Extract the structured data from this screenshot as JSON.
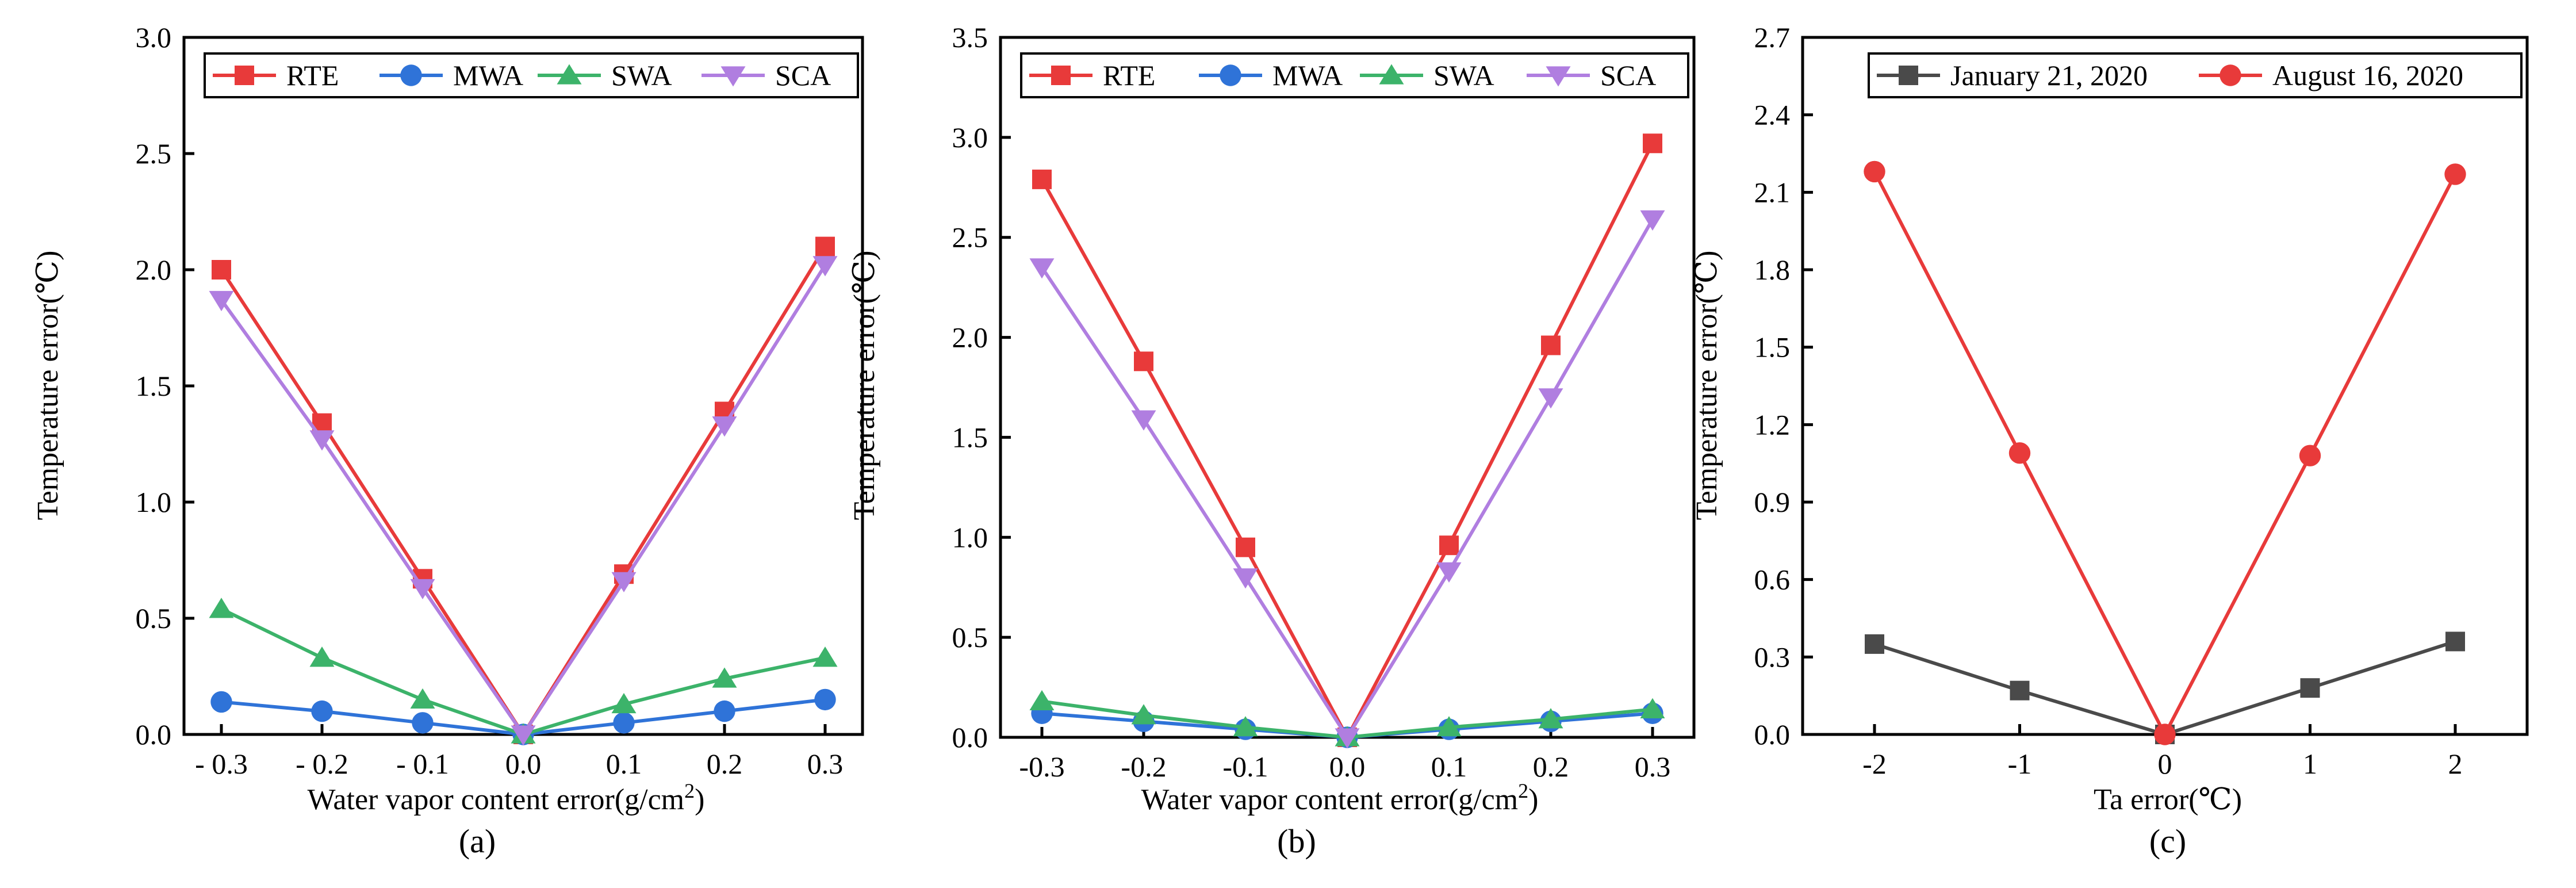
{
  "colors": {
    "RTE": "#e83a3a",
    "MWA": "#2f73d8",
    "SWA": "#3cb36a",
    "SCA": "#b07ee0",
    "jan": "#4a4a4a",
    "aug": "#e83a3a"
  },
  "chart_data": [
    {
      "type": "line",
      "panel": "(a)",
      "xlabel": "Water vapor content error(g/cm",
      "xlabel_sup": "2",
      "xlabel_end": ")",
      "ylabel": "Temperature error(℃)",
      "x": [
        -0.3,
        -0.2,
        -0.1,
        0.0,
        0.1,
        0.2,
        0.3
      ],
      "xtick_labels": [
        "- 0.3",
        "- 0.2",
        "- 0.1",
        "0.0",
        "0.1",
        "0.2",
        "0.3"
      ],
      "ylim": [
        0,
        3.0
      ],
      "yticks": [
        0,
        0.5,
        1.0,
        1.5,
        2.0,
        2.5,
        3.0
      ],
      "ytick_labels": [
        "0.0",
        "0.5",
        "1.0",
        "1.5",
        "2.0",
        "2.5",
        "3.0"
      ],
      "legend_position": "top-right",
      "series": [
        {
          "name": "RTE",
          "marker": "square",
          "values": [
            2.0,
            1.34,
            0.67,
            0.0,
            0.69,
            1.39,
            2.1
          ]
        },
        {
          "name": "MWA",
          "marker": "circle",
          "values": [
            0.14,
            0.1,
            0.05,
            0.0,
            0.05,
            0.1,
            0.15
          ]
        },
        {
          "name": "SWA",
          "marker": "triangle-up",
          "values": [
            0.54,
            0.33,
            0.15,
            0.0,
            0.13,
            0.24,
            0.33
          ]
        },
        {
          "name": "SCA",
          "marker": "triangle-down",
          "values": [
            1.87,
            1.27,
            0.63,
            0.0,
            0.66,
            1.33,
            2.02
          ]
        }
      ]
    },
    {
      "type": "line",
      "panel": "(b)",
      "xlabel": "Water vapor content error(g/cm",
      "xlabel_sup": "2",
      "xlabel_end": ")",
      "ylabel": "Temperature error(℃)",
      "x": [
        -0.3,
        -0.2,
        -0.1,
        0.0,
        0.1,
        0.2,
        0.3
      ],
      "xtick_labels": [
        "-0.3",
        "-0.2",
        "-0.1",
        "0.0",
        "0.1",
        "0.2",
        "0.3"
      ],
      "ylim": [
        0,
        3.5
      ],
      "yticks": [
        0,
        0.5,
        1.0,
        1.5,
        2.0,
        2.5,
        3.0,
        3.5
      ],
      "ytick_labels": [
        "0.0",
        "0.5",
        "1.0",
        "1.5",
        "2.0",
        "2.5",
        "3.0",
        "3.5"
      ],
      "legend_position": "top-right",
      "series": [
        {
          "name": "RTE",
          "marker": "square",
          "values": [
            2.79,
            1.88,
            0.95,
            0.0,
            0.96,
            1.96,
            2.97
          ]
        },
        {
          "name": "MWA",
          "marker": "circle",
          "values": [
            0.12,
            0.08,
            0.04,
            0.0,
            0.04,
            0.08,
            0.12
          ]
        },
        {
          "name": "SWA",
          "marker": "triangle-up",
          "values": [
            0.18,
            0.11,
            0.05,
            0.0,
            0.05,
            0.09,
            0.14
          ]
        },
        {
          "name": "SCA",
          "marker": "triangle-down",
          "values": [
            2.35,
            1.59,
            0.8,
            0.0,
            0.83,
            1.7,
            2.59
          ]
        }
      ]
    },
    {
      "type": "line",
      "panel": "(c)",
      "xlabel": "Ta error(℃)",
      "xlabel_sup": "",
      "xlabel_end": "",
      "ylabel": "Temperature error(℃)",
      "x": [
        -2,
        -1,
        0,
        1,
        2
      ],
      "xtick_labels": [
        "-2",
        "-1",
        "0",
        "1",
        "2"
      ],
      "ylim": [
        0,
        2.7
      ],
      "yticks": [
        0,
        0.3,
        0.6,
        0.9,
        1.2,
        1.5,
        1.8,
        2.1,
        2.4,
        2.7
      ],
      "ytick_labels": [
        "0.0",
        "0.3",
        "0.6",
        "0.9",
        "1.2",
        "1.5",
        "1.8",
        "2.1",
        "2.4",
        "2.7"
      ],
      "legend_position": "top-right",
      "series": [
        {
          "name": "January 21, 2020",
          "marker": "square",
          "values": [
            0.35,
            0.17,
            0.0,
            0.18,
            0.36
          ]
        },
        {
          "name": "August 16, 2020",
          "marker": "circle",
          "values": [
            2.18,
            1.09,
            0.0,
            1.08,
            2.17
          ]
        }
      ]
    }
  ]
}
